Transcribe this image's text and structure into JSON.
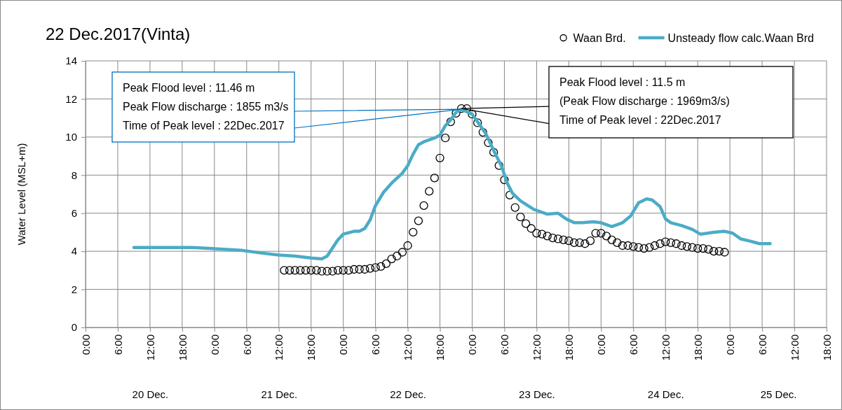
{
  "chart_data": {
    "type": "line",
    "title": "22 Dec.2017(Vinta)",
    "ylabel": "Water Level (MSL+m)",
    "xlim": [
      "2017-12-20T00:00",
      "2017-12-25T18:00"
    ],
    "xticks": [
      {
        "value": "2017-12-20T00:00",
        "label": "0:00"
      },
      {
        "value": "2017-12-20T06:00",
        "label": "6:00"
      },
      {
        "value": "2017-12-20T12:00",
        "label": "12:00"
      },
      {
        "value": "2017-12-20T18:00",
        "label": "18:00"
      },
      {
        "value": "2017-12-21T00:00",
        "label": "0:00"
      },
      {
        "value": "2017-12-21T06:00",
        "label": "6:00"
      },
      {
        "value": "2017-12-21T12:00",
        "label": "12:00"
      },
      {
        "value": "2017-12-21T18:00",
        "label": "18:00"
      },
      {
        "value": "2017-12-22T00:00",
        "label": "0:00"
      },
      {
        "value": "2017-12-22T06:00",
        "label": "6:00"
      },
      {
        "value": "2017-12-22T12:00",
        "label": "12:00"
      },
      {
        "value": "2017-12-22T18:00",
        "label": "18:00"
      },
      {
        "value": "2017-12-23T00:00",
        "label": "0:00"
      },
      {
        "value": "2017-12-23T06:00",
        "label": "6:00"
      },
      {
        "value": "2017-12-23T12:00",
        "label": "12:00"
      },
      {
        "value": "2017-12-23T18:00",
        "label": "18:00"
      },
      {
        "value": "2017-12-24T00:00",
        "label": "0:00"
      },
      {
        "value": "2017-12-24T06:00",
        "label": "6:00"
      },
      {
        "value": "2017-12-24T12:00",
        "label": "12:00"
      },
      {
        "value": "2017-12-24T18:00",
        "label": "18:00"
      },
      {
        "value": "2017-12-25T00:00",
        "label": "0:00"
      },
      {
        "value": "2017-12-25T06:00",
        "label": "6:00"
      },
      {
        "value": "2017-12-25T12:00",
        "label": "12:00"
      },
      {
        "value": "2017-12-25T18:00",
        "label": "18:00"
      }
    ],
    "x2lim": [
      "2017-12-20T00:00",
      "2017-12-25T18:00"
    ],
    "x2ticks": [
      {
        "value": "2017-12-20T12:00",
        "label": "20 Dec."
      },
      {
        "value": "2017-12-21T12:00",
        "label": "21 Dec."
      },
      {
        "value": "2017-12-22T12:00",
        "label": "22 Dec."
      },
      {
        "value": "2017-12-23T12:00",
        "label": "23 Dec."
      },
      {
        "value": "2017-12-24T12:00",
        "label": "24 Dec."
      },
      {
        "value": "2017-12-25T09:00",
        "label": "25 Dec."
      }
    ],
    "ylim": [
      0,
      14
    ],
    "yticks": [
      0,
      2,
      4,
      6,
      8,
      10,
      12,
      14
    ],
    "grid": true,
    "legend": "top right",
    "series": [
      {
        "name": "Waan Brd.",
        "type": "scatter",
        "marker": "circle",
        "color": "#000000",
        "x": [
          "2017-12-21T13:00",
          "2017-12-21T14:00",
          "2017-12-21T15:00",
          "2017-12-21T16:00",
          "2017-12-21T17:00",
          "2017-12-21T18:00",
          "2017-12-21T19:00",
          "2017-12-21T20:00",
          "2017-12-21T21:00",
          "2017-12-21T22:00",
          "2017-12-21T23:00",
          "2017-12-22T00:00",
          "2017-12-22T01:00",
          "2017-12-22T02:00",
          "2017-12-22T03:00",
          "2017-12-22T04:00",
          "2017-12-22T05:00",
          "2017-12-22T06:00",
          "2017-12-22T07:00",
          "2017-12-22T08:00",
          "2017-12-22T09:00",
          "2017-12-22T10:00",
          "2017-12-22T11:00",
          "2017-12-22T12:00",
          "2017-12-22T13:00",
          "2017-12-22T14:00",
          "2017-12-22T15:00",
          "2017-12-22T16:00",
          "2017-12-22T17:00",
          "2017-12-22T18:00",
          "2017-12-22T19:00",
          "2017-12-22T20:00",
          "2017-12-22T21:00",
          "2017-12-22T22:00",
          "2017-12-22T23:00",
          "2017-12-23T00:00",
          "2017-12-23T01:00",
          "2017-12-23T02:00",
          "2017-12-23T03:00",
          "2017-12-23T04:00",
          "2017-12-23T05:00",
          "2017-12-23T06:00",
          "2017-12-23T07:00",
          "2017-12-23T08:00",
          "2017-12-23T09:00",
          "2017-12-23T10:00",
          "2017-12-23T11:00",
          "2017-12-23T12:00",
          "2017-12-23T13:00",
          "2017-12-23T14:00",
          "2017-12-23T15:00",
          "2017-12-23T16:00",
          "2017-12-23T17:00",
          "2017-12-23T18:00",
          "2017-12-23T19:00",
          "2017-12-23T20:00",
          "2017-12-23T21:00",
          "2017-12-23T22:00",
          "2017-12-23T23:00",
          "2017-12-24T00:00",
          "2017-12-24T01:00",
          "2017-12-24T02:00",
          "2017-12-24T03:00",
          "2017-12-24T04:00",
          "2017-12-24T05:00",
          "2017-12-24T06:00",
          "2017-12-24T07:00",
          "2017-12-24T08:00",
          "2017-12-24T09:00",
          "2017-12-24T10:00",
          "2017-12-24T11:00",
          "2017-12-24T12:00",
          "2017-12-24T13:00",
          "2017-12-24T14:00",
          "2017-12-24T15:00",
          "2017-12-24T16:00",
          "2017-12-24T17:00",
          "2017-12-24T18:00",
          "2017-12-24T19:00",
          "2017-12-24T20:00",
          "2017-12-24T21:00",
          "2017-12-24T22:00",
          "2017-12-24T23:00"
        ],
        "values": [
          3.0,
          3.0,
          3.0,
          3.0,
          3.0,
          3.0,
          3.0,
          2.95,
          2.95,
          2.95,
          3.0,
          3.0,
          3.0,
          3.05,
          3.05,
          3.05,
          3.1,
          3.15,
          3.2,
          3.35,
          3.6,
          3.75,
          3.95,
          4.3,
          5.0,
          5.6,
          6.4,
          7.15,
          7.85,
          8.9,
          9.95,
          10.8,
          11.25,
          11.5,
          11.5,
          11.2,
          10.75,
          10.25,
          9.7,
          9.2,
          8.5,
          7.75,
          6.95,
          6.3,
          5.8,
          5.45,
          5.2,
          4.95,
          4.9,
          4.8,
          4.7,
          4.65,
          4.6,
          4.55,
          4.45,
          4.45,
          4.4,
          4.55,
          4.95,
          4.95,
          4.8,
          4.6,
          4.45,
          4.3,
          4.3,
          4.25,
          4.2,
          4.15,
          4.2,
          4.3,
          4.4,
          4.5,
          4.45,
          4.4,
          4.3,
          4.25,
          4.2,
          4.15,
          4.15,
          4.1,
          4.0,
          4.0,
          3.95
        ]
      },
      {
        "name": "Unsteady flow calc.Waan Brd",
        "type": "line",
        "color": "#4bacc6",
        "x": [
          "2017-12-20T09:00",
          "2017-12-20T20:00",
          "2017-12-20T23:00",
          "2017-12-21T05:00",
          "2017-12-21T09:00",
          "2017-12-21T12:00",
          "2017-12-21T15:00",
          "2017-12-21T18:00",
          "2017-12-21T20:00",
          "2017-12-21T21:00",
          "2017-12-21T23:00",
          "2017-12-22T00:00",
          "2017-12-22T02:00",
          "2017-12-22T03:00",
          "2017-12-22T04:00",
          "2017-12-22T05:00",
          "2017-12-22T06:00",
          "2017-12-22T07:30",
          "2017-12-22T09:15",
          "2017-12-22T11:00",
          "2017-12-22T12:00",
          "2017-12-22T13:00",
          "2017-12-22T14:00",
          "2017-12-22T15:00",
          "2017-12-22T17:00",
          "2017-12-22T18:00",
          "2017-12-22T19:00",
          "2017-12-22T20:00",
          "2017-12-22T21:00",
          "2017-12-22T22:00",
          "2017-12-23T00:00",
          "2017-12-23T01:00",
          "2017-12-23T02:30",
          "2017-12-23T04:00",
          "2017-12-23T05:30",
          "2017-12-23T06:30",
          "2017-12-23T07:30",
          "2017-12-23T09:00",
          "2017-12-23T11:30",
          "2017-12-23T14:00",
          "2017-12-23T16:00",
          "2017-12-23T17:30",
          "2017-12-23T19:00",
          "2017-12-23T20:30",
          "2017-12-23T22:30",
          "2017-12-24T00:00",
          "2017-12-24T02:00",
          "2017-12-24T04:00",
          "2017-12-24T05:30",
          "2017-12-24T07:00",
          "2017-12-24T08:30",
          "2017-12-24T09:30",
          "2017-12-24T11:00",
          "2017-12-24T12:00",
          "2017-12-24T13:00",
          "2017-12-24T15:00",
          "2017-12-24T17:00",
          "2017-12-24T18:30",
          "2017-12-24T21:00",
          "2017-12-24T23:00",
          "2017-12-25T00:30",
          "2017-12-25T02:00",
          "2017-12-25T03:30",
          "2017-12-25T05:30",
          "2017-12-25T07:30"
        ],
        "values": [
          4.2,
          4.2,
          4.15,
          4.05,
          3.9,
          3.8,
          3.75,
          3.65,
          3.6,
          3.75,
          4.6,
          4.9,
          5.05,
          5.05,
          5.2,
          5.65,
          6.4,
          7.1,
          7.65,
          8.1,
          8.5,
          9.1,
          9.6,
          9.75,
          9.95,
          10.1,
          10.6,
          10.9,
          11.3,
          11.46,
          11.2,
          10.8,
          10.2,
          9.3,
          8.45,
          7.6,
          7.05,
          6.65,
          6.2,
          5.95,
          6.0,
          5.7,
          5.5,
          5.5,
          5.55,
          5.5,
          5.3,
          5.5,
          5.85,
          6.55,
          6.75,
          6.7,
          6.35,
          5.7,
          5.5,
          5.35,
          5.15,
          4.9,
          5.0,
          5.05,
          4.95,
          4.65,
          4.55,
          4.4,
          4.4
        ]
      }
    ],
    "annotations": [
      "Peak Flood level :  11.46 m\nPeak Flow discharge : 1855  m3/s\nTime of Peak level : 22Dec.2017",
      "Peak Flood level :  11.5 m\n(Peak Flow discharge : 1969m3/s)\nTime of Peak level : 22Dec.2017"
    ]
  }
}
